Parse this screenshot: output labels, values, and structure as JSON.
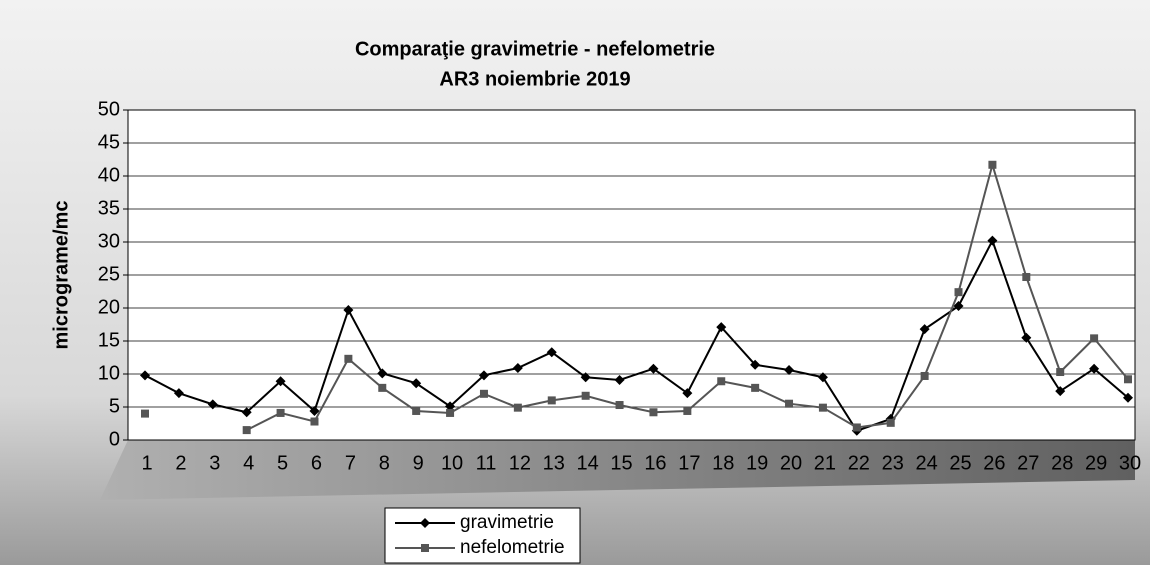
{
  "chart_data": {
    "type": "line",
    "title": "Comparaţie gravimetrie - nefelometrie",
    "subtitle": "AR3 noiembrie 2019",
    "y_label": "micrograme/mc",
    "categories": [
      "1",
      "2",
      "3",
      "4",
      "5",
      "6",
      "7",
      "8",
      "9",
      "10",
      "11",
      "12",
      "13",
      "14",
      "15",
      "16",
      "17",
      "18",
      "19",
      "20",
      "21",
      "22",
      "23",
      "24",
      "25",
      "26",
      "27",
      "28",
      "29",
      "30"
    ],
    "series": [
      {
        "name": "gravimetrie",
        "color": "#000000",
        "marker": "diamond",
        "values": [
          9.8,
          7.1,
          5.4,
          4.2,
          8.9,
          4.4,
          19.7,
          10.1,
          8.6,
          5.1,
          9.8,
          10.9,
          13.3,
          9.5,
          9.1,
          10.8,
          7.1,
          17.1,
          11.4,
          10.6,
          9.5,
          1.4,
          3.2,
          16.8,
          20.3,
          30.2,
          15.5,
          7.4,
          10.8,
          6.4
        ]
      },
      {
        "name": "nefelometrie",
        "color": "#555555",
        "marker": "square",
        "values": [
          4.0,
          null,
          null,
          1.5,
          4.1,
          2.8,
          12.3,
          7.9,
          4.4,
          4.1,
          7.0,
          4.9,
          6.0,
          6.7,
          5.3,
          4.2,
          4.4,
          8.9,
          7.9,
          5.5,
          4.9,
          1.9,
          2.6,
          9.7,
          22.4,
          41.7,
          24.7,
          10.3,
          15.4,
          9.2
        ]
      }
    ],
    "ylim": [
      0,
      50
    ],
    "yticks": [
      0,
      5,
      10,
      15,
      20,
      25,
      30,
      35,
      40,
      45,
      50
    ],
    "grid": true,
    "legend": "bottom"
  }
}
